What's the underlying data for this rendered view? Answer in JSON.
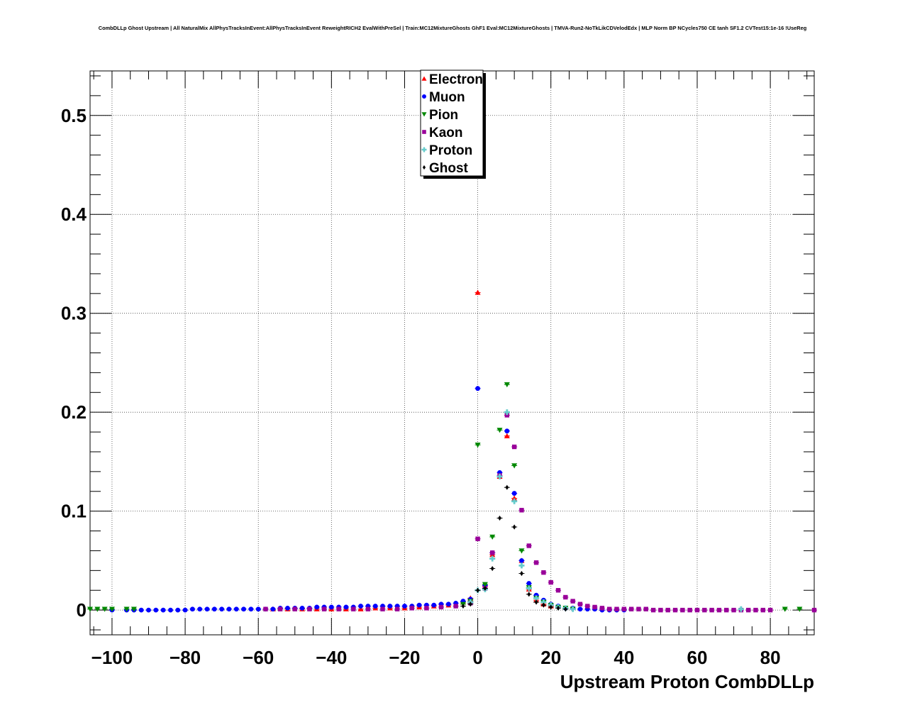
{
  "chart_data": {
    "type": "scatter",
    "title": "CombDLLp Ghost Upstream | All NaturalMix AllPhysTracksInEvent:AllPhysTracksInEvent ReweightRICH2 EvalWithPreSel | Train:MC12MixtureGhosts GhF1 Eval:MC12MixtureGhosts | TMVA-Run2-NoTkLikCDVelodEdx | MLP Norm BP NCycles750 CE tanh SF1.2 CVTest15:1e-16 !UseReg",
    "xlabel": "Upstream Proton CombDLLp",
    "ylabel": "",
    "xlim": [
      -106,
      92
    ],
    "ylim": [
      -0.025,
      0.545
    ],
    "xticks": [
      -100,
      -80,
      -60,
      -40,
      -20,
      0,
      20,
      40,
      60,
      80
    ],
    "xtick_labels": [
      "−100",
      "−80",
      "−60",
      "−40",
      "−20",
      "0",
      "20",
      "40",
      "60",
      "80"
    ],
    "yticks": [
      0,
      0.1,
      0.2,
      0.3,
      0.4,
      0.5
    ],
    "ytick_labels": [
      "0",
      "0.1",
      "0.2",
      "0.3",
      "0.4",
      "0.5"
    ],
    "grid": true,
    "legend_position": "top-center",
    "series": [
      {
        "name": "Electron",
        "color": "#ff0000",
        "marker": "triangle-up",
        "x": [
          -56,
          -52,
          -48,
          -44,
          -40,
          -36,
          -32,
          -28,
          -24,
          -20,
          -16,
          -12,
          -8,
          -4,
          -2,
          0,
          2,
          4,
          6,
          8,
          10,
          12,
          14,
          16,
          18,
          20
        ],
        "y": [
          0.001,
          0.001,
          0.001,
          0.001,
          0.001,
          0.001,
          0.001,
          0.002,
          0.002,
          0.002,
          0.003,
          0.004,
          0.005,
          0.008,
          0.012,
          0.321,
          0.024,
          0.056,
          0.135,
          0.176,
          0.113,
          0.05,
          0.021,
          0.01,
          0.006,
          0.004
        ]
      },
      {
        "name": "Muon",
        "color": "#0000ff",
        "marker": "circle",
        "x": [
          -100,
          -96,
          -94,
          -92,
          -90,
          -88,
          -86,
          -84,
          -82,
          -80,
          -78,
          -76,
          -74,
          -72,
          -70,
          -68,
          -66,
          -64,
          -62,
          -60,
          -58,
          -56,
          -54,
          -52,
          -50,
          -48,
          -46,
          -44,
          -42,
          -40,
          -38,
          -36,
          -34,
          -32,
          -30,
          -28,
          -26,
          -24,
          -22,
          -20,
          -18,
          -16,
          -14,
          -12,
          -10,
          -8,
          -6,
          -4,
          -2,
          0,
          2,
          4,
          6,
          8,
          10,
          12,
          14,
          16,
          18,
          20,
          22,
          24,
          26,
          28,
          30,
          32,
          34,
          36,
          38,
          40
        ],
        "y": [
          0,
          0,
          0,
          0,
          0,
          0,
          0,
          0,
          0,
          0,
          0.001,
          0.001,
          0.001,
          0.001,
          0.001,
          0.001,
          0.001,
          0.001,
          0.001,
          0.001,
          0.001,
          0.001,
          0.002,
          0.002,
          0.002,
          0.002,
          0.002,
          0.003,
          0.003,
          0.003,
          0.003,
          0.003,
          0.003,
          0.004,
          0.004,
          0.004,
          0.004,
          0.004,
          0.004,
          0.004,
          0.004,
          0.005,
          0.005,
          0.005,
          0.006,
          0.006,
          0.007,
          0.009,
          0.011,
          0.224,
          0.025,
          0.058,
          0.139,
          0.181,
          0.118,
          0.05,
          0.027,
          0.015,
          0.01,
          0.006,
          0.004,
          0.002,
          0.002,
          0.001,
          0.001,
          0.001,
          0,
          0,
          0,
          0
        ]
      },
      {
        "name": "Pion",
        "color": "#008800",
        "marker": "triangle-down",
        "x": [
          -106,
          -104,
          -102,
          -100,
          -96,
          -94,
          -4,
          -2,
          0,
          2,
          4,
          6,
          8,
          10,
          12,
          14,
          16,
          18,
          20,
          22,
          24,
          26,
          84,
          88
        ],
        "y": [
          0.001,
          0.001,
          0.001,
          0.001,
          0.001,
          0.001,
          0.006,
          0.009,
          0.167,
          0.026,
          0.074,
          0.182,
          0.228,
          0.146,
          0.06,
          0.023,
          0.012,
          0.008,
          0.005,
          0.003,
          0.002,
          0.001,
          0.001,
          0.001
        ]
      },
      {
        "name": "Kaon",
        "color": "#990099",
        "marker": "square",
        "x": [
          -58,
          -54,
          -50,
          -46,
          -42,
          -38,
          -34,
          -30,
          -26,
          -22,
          -18,
          -14,
          -10,
          -6,
          -2,
          0,
          2,
          4,
          6,
          8,
          10,
          12,
          14,
          16,
          18,
          20,
          22,
          24,
          26,
          28,
          30,
          32,
          34,
          36,
          38,
          40,
          42,
          44,
          46,
          48,
          50,
          52,
          54,
          56,
          58,
          60,
          62,
          64,
          66,
          68,
          70,
          72,
          74,
          76,
          78,
          80,
          92
        ],
        "y": [
          0.001,
          0.001,
          0.001,
          0.001,
          0.001,
          0.001,
          0.001,
          0.001,
          0.001,
          0.001,
          0.002,
          0.002,
          0.003,
          0.004,
          0.007,
          0.072,
          0.022,
          0.058,
          0.136,
          0.197,
          0.165,
          0.101,
          0.065,
          0.048,
          0.038,
          0.028,
          0.02,
          0.013,
          0.009,
          0.006,
          0.004,
          0.003,
          0.002,
          0.001,
          0.001,
          0.001,
          0.001,
          0.001,
          0.001,
          0,
          0,
          0,
          0,
          0,
          0,
          0,
          0,
          0,
          0,
          0,
          0,
          0,
          0,
          0,
          0,
          0,
          0
        ]
      },
      {
        "name": "Proton",
        "color": "#66cccc",
        "marker": "cross",
        "x": [
          -2,
          0,
          2,
          4,
          6,
          8,
          10,
          12,
          14,
          16,
          18,
          20,
          22,
          24,
          26,
          72
        ],
        "y": [
          0.008,
          0.02,
          0.021,
          0.052,
          0.135,
          0.2,
          0.11,
          0.045,
          0.022,
          0.012,
          0.008,
          0.005,
          0.003,
          0.002,
          0.001,
          0.001
        ]
      },
      {
        "name": "Ghost",
        "color": "#000000",
        "marker": "diamond",
        "x": [
          -4,
          -2,
          0,
          2,
          4,
          6,
          8,
          10,
          12,
          14,
          16,
          18,
          20,
          22,
          24
        ],
        "y": [
          0.004,
          0.006,
          0.02,
          0.022,
          0.042,
          0.093,
          0.124,
          0.084,
          0.037,
          0.016,
          0.008,
          0.005,
          0.003,
          0.002,
          0.001
        ]
      }
    ]
  }
}
